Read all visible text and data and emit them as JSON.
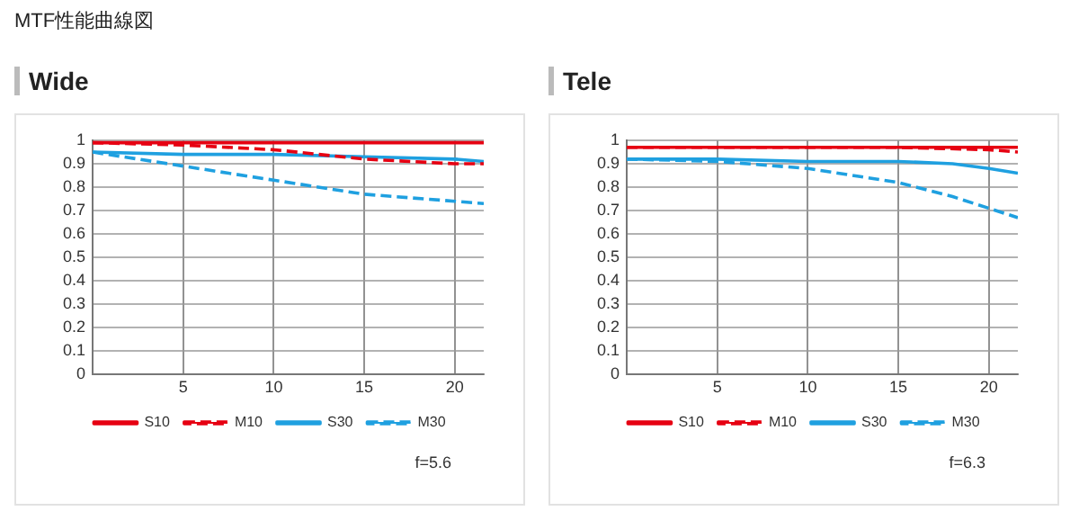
{
  "chart_data": [
    {
      "type": "line",
      "subtitle": "MTF性能曲線図",
      "title": "Wide",
      "xlim": [
        0,
        21.6
      ],
      "xticks": [
        5,
        10,
        15,
        20
      ],
      "ylim": [
        0,
        1
      ],
      "yticks": [
        0,
        0.1,
        0.2,
        0.3,
        0.4,
        0.5,
        0.6,
        0.7,
        0.8,
        0.9,
        1
      ],
      "grid": true,
      "legend": "bottom",
      "marker": "none",
      "annotations": [
        "f=5.6"
      ],
      "series": [
        {
          "name": "S10",
          "color": "#e60012",
          "line_style": "solid",
          "x": [
            0,
            5,
            10,
            15,
            20,
            21.6
          ],
          "values": [
            0.99,
            0.99,
            0.99,
            0.99,
            0.99,
            0.99
          ]
        },
        {
          "name": "M10",
          "color": "#e60012",
          "line_style": "dashed",
          "x": [
            0,
            5,
            10,
            15,
            20,
            21.6
          ],
          "values": [
            0.99,
            0.98,
            0.96,
            0.92,
            0.9,
            0.9
          ]
        },
        {
          "name": "S30",
          "color": "#1fa0e0",
          "line_style": "solid",
          "x": [
            0,
            5,
            10,
            15,
            20,
            21.6
          ],
          "values": [
            0.95,
            0.94,
            0.94,
            0.93,
            0.92,
            0.91
          ]
        },
        {
          "name": "M30",
          "color": "#1fa0e0",
          "line_style": "dashed",
          "x": [
            0,
            5,
            10,
            15,
            20,
            21.6
          ],
          "values": [
            0.95,
            0.89,
            0.83,
            0.77,
            0.74,
            0.73
          ]
        }
      ]
    },
    {
      "type": "line",
      "title": "Tele",
      "xlim": [
        0,
        21.6
      ],
      "xticks": [
        5,
        10,
        15,
        20
      ],
      "ylim": [
        0,
        1
      ],
      "yticks": [
        0,
        0.1,
        0.2,
        0.3,
        0.4,
        0.5,
        0.6,
        0.7,
        0.8,
        0.9,
        1
      ],
      "grid": true,
      "legend": "bottom",
      "marker": "none",
      "annotations": [
        "f=6.3"
      ],
      "series": [
        {
          "name": "S10",
          "color": "#e60012",
          "line_style": "solid",
          "x": [
            0,
            5,
            10,
            15,
            20,
            21.6
          ],
          "values": [
            0.97,
            0.97,
            0.97,
            0.97,
            0.97,
            0.97
          ]
        },
        {
          "name": "M10",
          "color": "#e60012",
          "line_style": "dashed",
          "x": [
            0,
            5,
            10,
            15,
            20,
            21.6
          ],
          "values": [
            0.97,
            0.97,
            0.97,
            0.97,
            0.96,
            0.95
          ]
        },
        {
          "name": "S30",
          "color": "#1fa0e0",
          "line_style": "solid",
          "x": [
            0,
            5,
            10,
            15,
            18,
            20,
            21.6
          ],
          "values": [
            0.92,
            0.92,
            0.91,
            0.91,
            0.9,
            0.88,
            0.86
          ]
        },
        {
          "name": "M30",
          "color": "#1fa0e0",
          "line_style": "dashed",
          "x": [
            0,
            5,
            10,
            15,
            18,
            20,
            21.6
          ],
          "values": [
            0.92,
            0.91,
            0.88,
            0.82,
            0.76,
            0.71,
            0.67
          ]
        }
      ]
    }
  ]
}
